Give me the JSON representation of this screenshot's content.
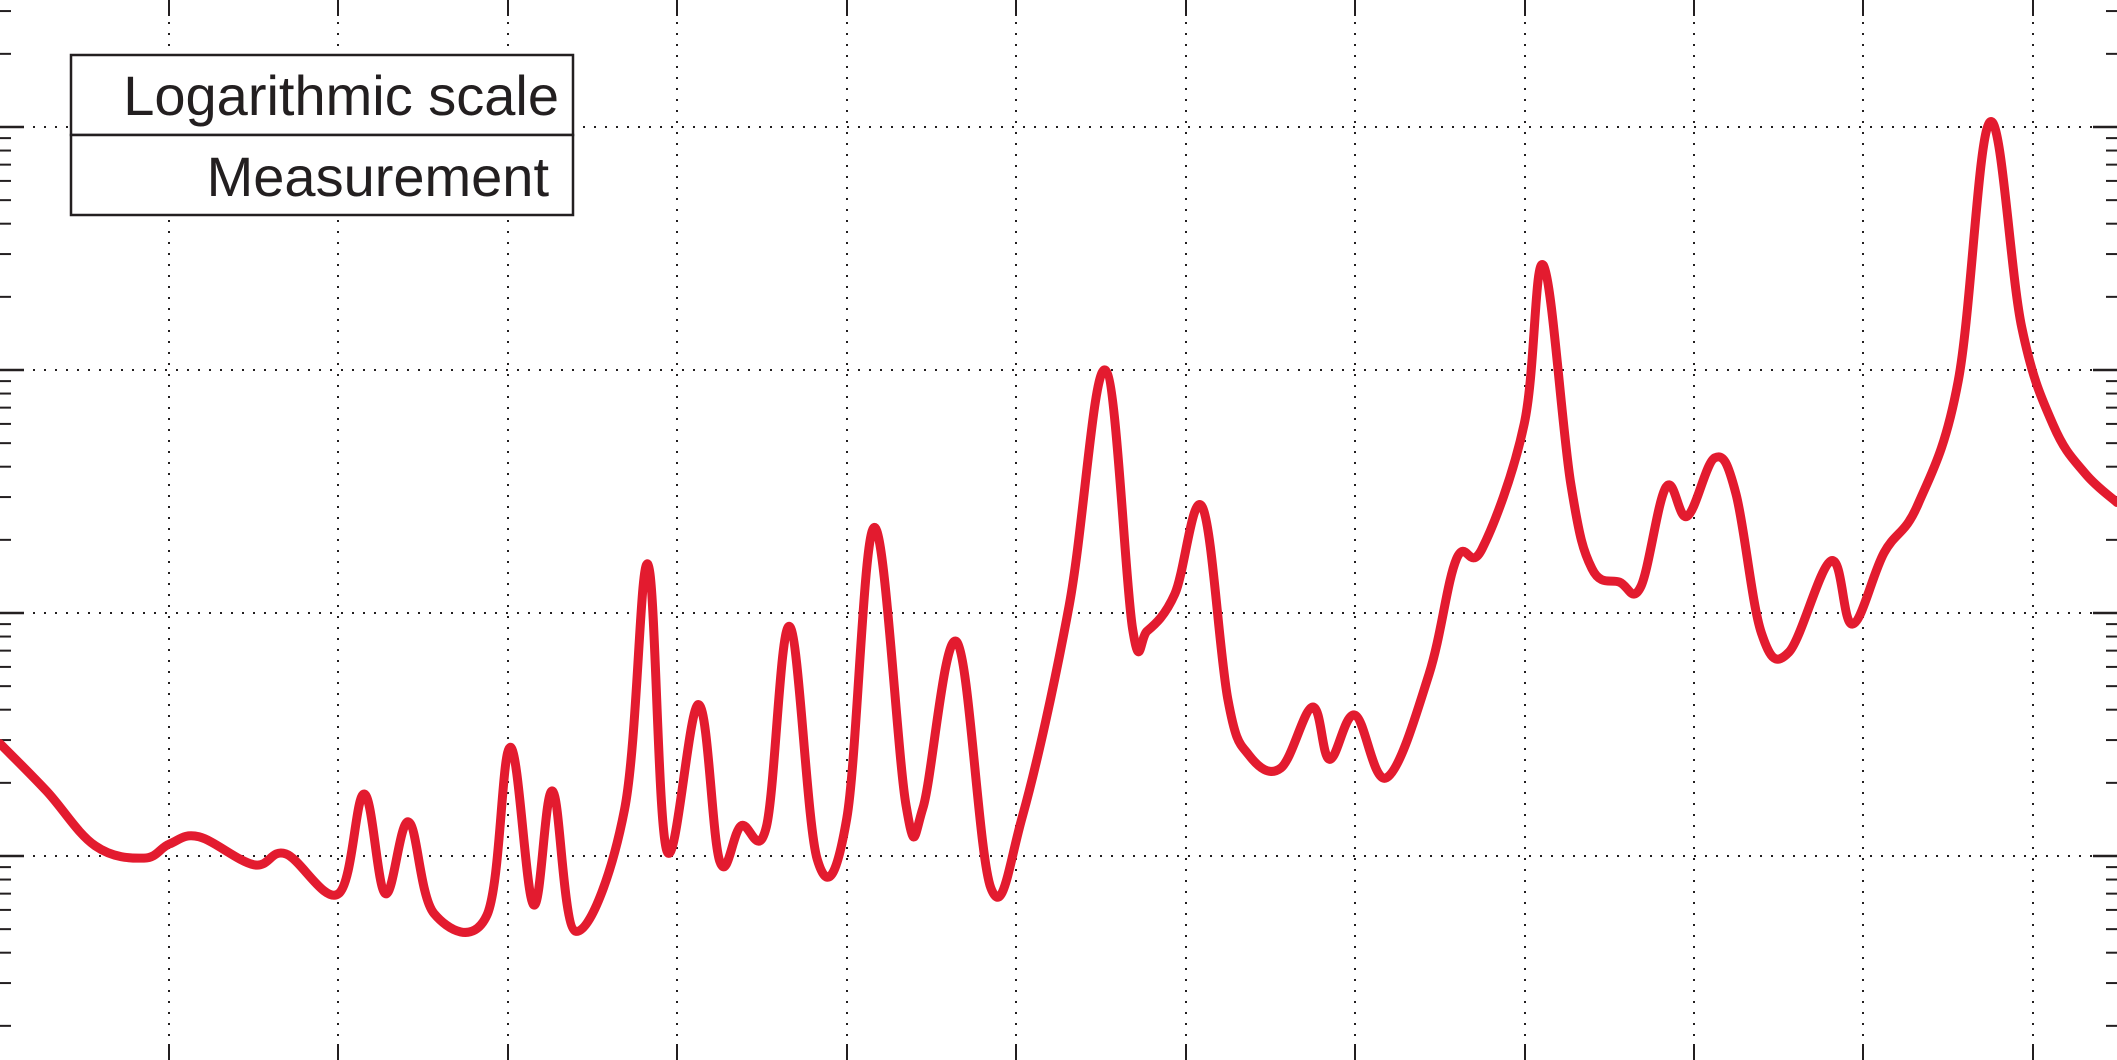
{
  "chart_data": {
    "type": "line",
    "yscale": "log",
    "grid": true,
    "legend_position": "top-left",
    "legend_entries": [
      "Logarithmic scale",
      "Measurement"
    ],
    "series": [
      {
        "name": "Measurement",
        "color": "#e31b2f",
        "values": [
          [
            0.0,
            0.029
          ],
          [
            0.022,
            0.0185
          ],
          [
            0.045,
            0.011
          ],
          [
            0.068,
            0.0098
          ],
          [
            0.08,
            0.0112
          ],
          [
            0.094,
            0.012
          ],
          [
            0.12,
            0.0092
          ],
          [
            0.135,
            0.0102
          ],
          [
            0.16,
            0.007
          ],
          [
            0.172,
            0.018
          ],
          [
            0.182,
            0.007
          ],
          [
            0.193,
            0.0138
          ],
          [
            0.205,
            0.0058
          ],
          [
            0.23,
            0.0057
          ],
          [
            0.241,
            0.028
          ],
          [
            0.252,
            0.0063
          ],
          [
            0.261,
            0.0185
          ],
          [
            0.272,
            0.0049
          ],
          [
            0.295,
            0.0155
          ],
          [
            0.306,
            0.159
          ],
          [
            0.315,
            0.0105
          ],
          [
            0.33,
            0.042
          ],
          [
            0.34,
            0.0095
          ],
          [
            0.35,
            0.0133
          ],
          [
            0.362,
            0.0132
          ],
          [
            0.373,
            0.088
          ],
          [
            0.386,
            0.0097
          ],
          [
            0.4,
            0.0143
          ],
          [
            0.413,
            0.225
          ],
          [
            0.428,
            0.0161
          ],
          [
            0.436,
            0.0158
          ],
          [
            0.452,
            0.076
          ],
          [
            0.468,
            0.0074
          ],
          [
            0.483,
            0.0146
          ],
          [
            0.505,
            0.107
          ],
          [
            0.522,
            1.0
          ],
          [
            0.535,
            0.086
          ],
          [
            0.542,
            0.0845
          ],
          [
            0.555,
            0.12
          ],
          [
            0.568,
            0.272
          ],
          [
            0.58,
            0.044
          ],
          [
            0.59,
            0.026
          ],
          [
            0.605,
            0.023
          ],
          [
            0.62,
            0.041
          ],
          [
            0.628,
            0.025
          ],
          [
            0.64,
            0.038
          ],
          [
            0.655,
            0.021
          ],
          [
            0.675,
            0.056
          ],
          [
            0.688,
            0.167
          ],
          [
            0.7,
            0.183
          ],
          [
            0.72,
            0.6
          ],
          [
            0.729,
            2.7
          ],
          [
            0.742,
            0.34
          ],
          [
            0.752,
            0.152
          ],
          [
            0.765,
            0.134
          ],
          [
            0.775,
            0.128
          ],
          [
            0.787,
            0.33
          ],
          [
            0.797,
            0.25
          ],
          [
            0.81,
            0.435
          ],
          [
            0.82,
            0.31
          ],
          [
            0.832,
            0.083
          ],
          [
            0.845,
            0.069
          ],
          [
            0.865,
            0.164
          ],
          [
            0.875,
            0.09
          ],
          [
            0.89,
            0.177
          ],
          [
            0.906,
            0.28
          ],
          [
            0.925,
            0.9
          ],
          [
            0.94,
            10.5
          ],
          [
            0.955,
            1.5
          ],
          [
            0.97,
            0.59
          ],
          [
            0.985,
            0.375
          ],
          [
            1.0,
            0.285
          ]
        ]
      }
    ]
  }
}
